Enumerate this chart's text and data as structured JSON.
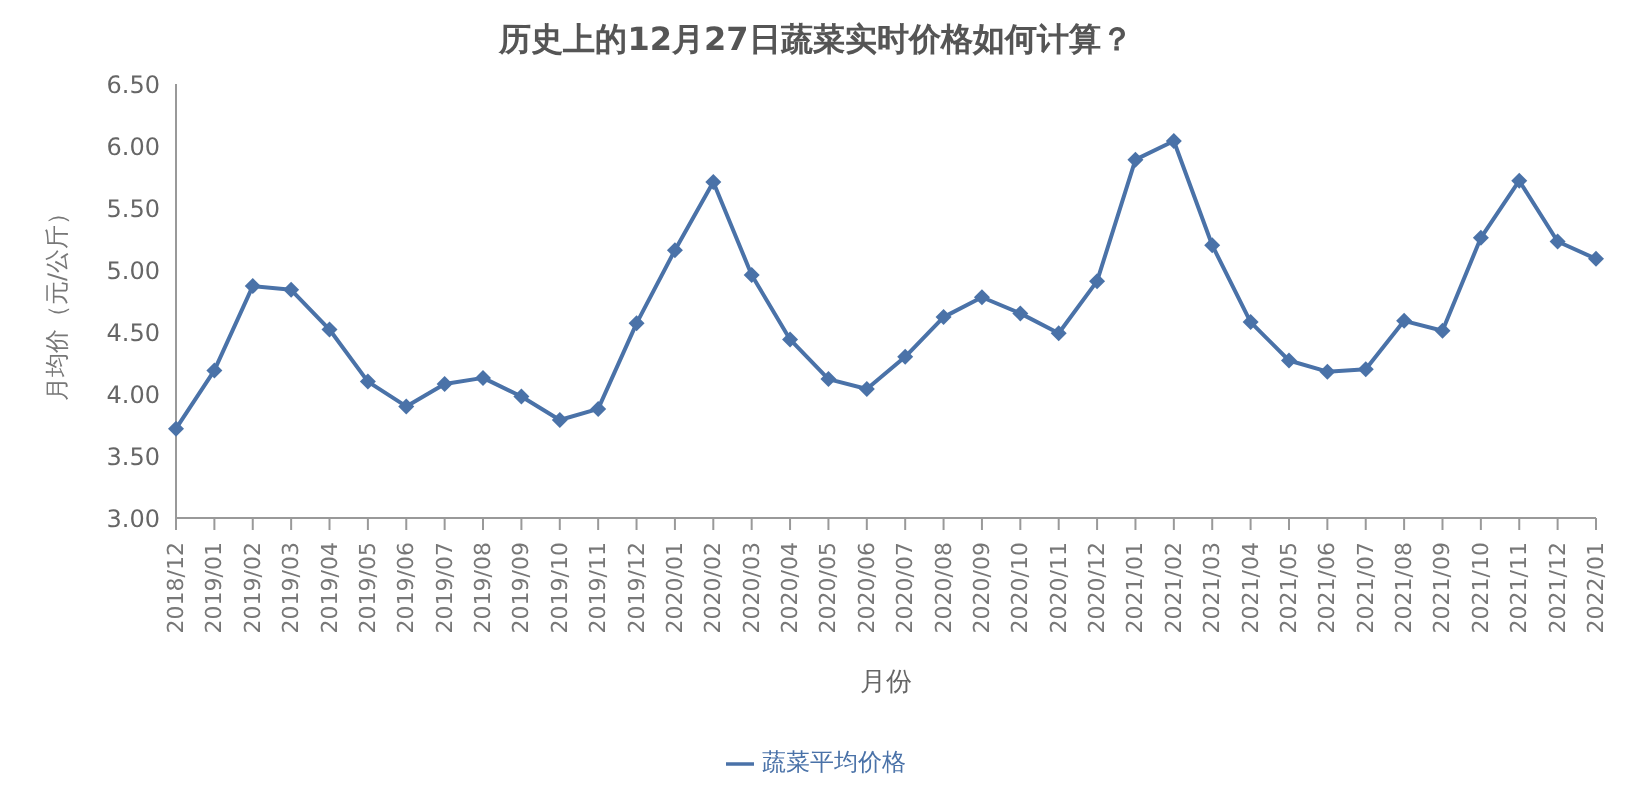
{
  "chart_data": {
    "type": "line",
    "title": "历史上的12月27日蔬菜实时价格如何计算？",
    "xlabel": "月份",
    "ylabel": "月均价（元/公斤）",
    "categories": [
      "2018/12",
      "2019/01",
      "2019/02",
      "2019/03",
      "2019/04",
      "2019/05",
      "2019/06",
      "2019/07",
      "2019/08",
      "2019/09",
      "2019/10",
      "2019/11",
      "2019/12",
      "2020/01",
      "2020/02",
      "2020/03",
      "2020/04",
      "2020/05",
      "2020/06",
      "2020/07",
      "2020/08",
      "2020/09",
      "2020/10",
      "2020/11",
      "2020/12",
      "2021/01",
      "2021/02",
      "2021/03",
      "2021/04",
      "2021/05",
      "2021/06",
      "2021/07",
      "2021/08",
      "2021/09",
      "2021/10",
      "2021/11",
      "2021/12",
      "2022/01"
    ],
    "series": [
      {
        "name": "蔬菜平均价格",
        "color": "#4a72a8",
        "values": [
          3.72,
          4.19,
          4.87,
          4.84,
          4.52,
          4.1,
          3.9,
          4.08,
          4.13,
          3.98,
          3.79,
          3.88,
          4.57,
          5.16,
          5.71,
          4.96,
          4.44,
          4.12,
          4.04,
          4.3,
          4.62,
          4.78,
          4.65,
          4.49,
          4.91,
          5.89,
          6.04,
          5.2,
          4.58,
          4.27,
          4.18,
          4.2,
          4.59,
          4.51,
          5.26,
          5.72,
          5.23,
          5.09
        ]
      }
    ],
    "ylim": [
      3,
      6.5
    ],
    "yticks": [
      {
        "value": 3,
        "label": "3.00"
      },
      {
        "value": 3.5,
        "label": "3.50"
      },
      {
        "value": 4,
        "label": "4.00"
      },
      {
        "value": 4.5,
        "label": "4.50"
      },
      {
        "value": 5,
        "label": "5.00"
      },
      {
        "value": 5.5,
        "label": "5.50"
      },
      {
        "value": 6,
        "label": "6.00"
      },
      {
        "value": 6.5,
        "label": "6.50"
      }
    ],
    "grid": false,
    "legend": "bottom",
    "marker": "diamond",
    "line_style": "solid"
  }
}
